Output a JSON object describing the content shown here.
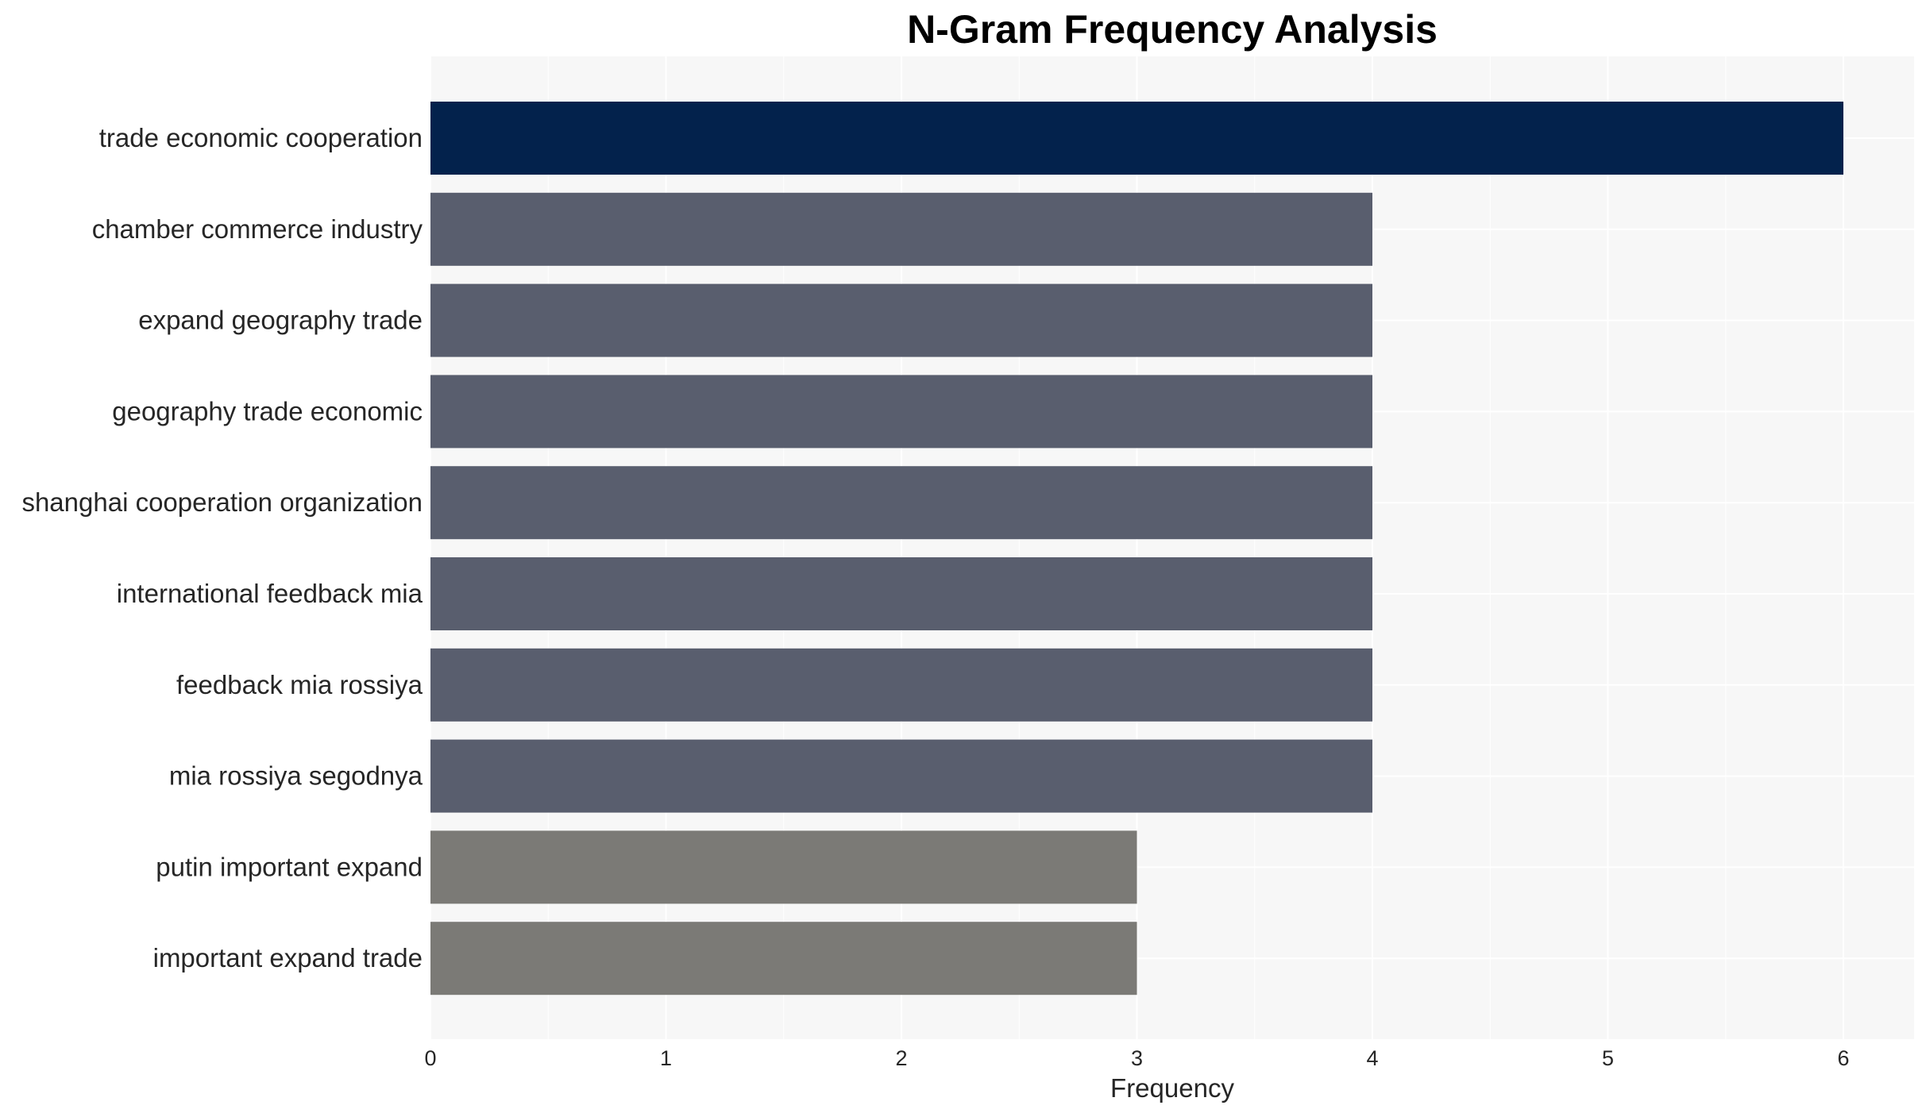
{
  "chart_data": {
    "type": "bar",
    "orientation": "horizontal",
    "title": "N-Gram Frequency Analysis",
    "xlabel": "Frequency",
    "ylabel": "",
    "xlim": [
      0,
      6.3
    ],
    "xticks": [
      0,
      1,
      2,
      3,
      4,
      5,
      6
    ],
    "grid": true,
    "categories": [
      "trade economic cooperation",
      "chamber commerce industry",
      "expand geography trade",
      "geography trade economic",
      "shanghai cooperation organization",
      "international feedback mia",
      "feedback mia rossiya",
      "mia rossiya segodnya",
      "putin important expand",
      "important expand trade"
    ],
    "values": [
      6,
      4,
      4,
      4,
      4,
      4,
      4,
      4,
      3,
      3
    ],
    "colors": {
      "background": "#f7f7f7",
      "grid": "#ffffff",
      "6": "#03224c",
      "4": "#595e6e",
      "3": "#7b7a76"
    }
  }
}
